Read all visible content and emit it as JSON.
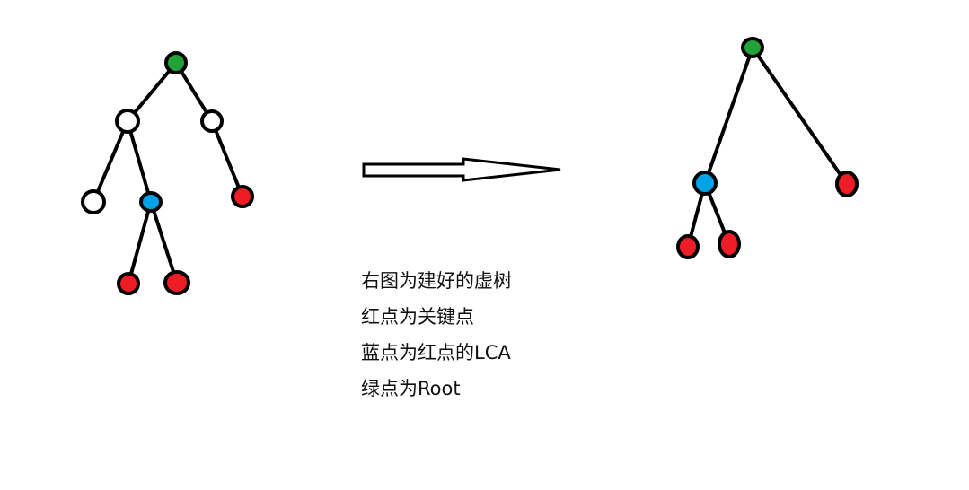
{
  "colors": {
    "root": "#22a33a",
    "key": "#ee1c24",
    "lca": "#00a2e8",
    "plain": "#ffffff",
    "stroke": "#000000"
  },
  "original_tree": {
    "nodes": [
      {
        "id": "a",
        "role": "root"
      },
      {
        "id": "b",
        "role": "plain"
      },
      {
        "id": "c",
        "role": "plain"
      },
      {
        "id": "d",
        "role": "plain"
      },
      {
        "id": "e",
        "role": "lca"
      },
      {
        "id": "f",
        "role": "key"
      },
      {
        "id": "g",
        "role": "key"
      },
      {
        "id": "h",
        "role": "key"
      }
    ],
    "edges": [
      [
        "a",
        "b"
      ],
      [
        "a",
        "c"
      ],
      [
        "b",
        "d"
      ],
      [
        "b",
        "e"
      ],
      [
        "c",
        "f"
      ],
      [
        "e",
        "g"
      ],
      [
        "e",
        "h"
      ]
    ]
  },
  "virtual_tree": {
    "nodes": [
      {
        "id": "a",
        "role": "root"
      },
      {
        "id": "e",
        "role": "lca"
      },
      {
        "id": "f",
        "role": "key"
      },
      {
        "id": "g",
        "role": "key"
      },
      {
        "id": "h",
        "role": "key"
      }
    ],
    "edges": [
      [
        "a",
        "e"
      ],
      [
        "a",
        "f"
      ],
      [
        "e",
        "g"
      ],
      [
        "e",
        "h"
      ]
    ]
  },
  "legend": {
    "line1": "右图为建好的虚树",
    "line2": "红点为关键点",
    "line3": "蓝点为红点的LCA",
    "line4": "绿点为Root"
  }
}
